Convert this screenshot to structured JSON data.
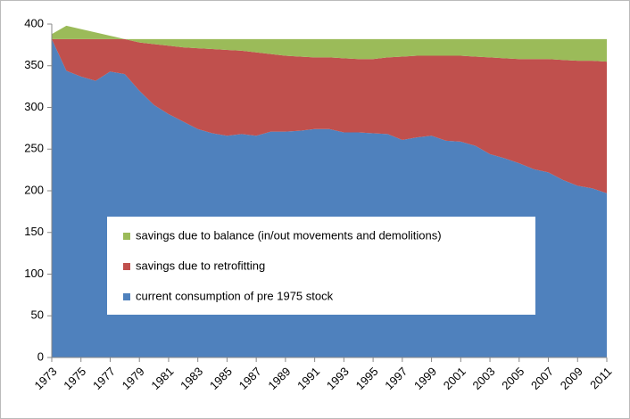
{
  "chart_data": {
    "type": "stacked-area",
    "x": [
      1973,
      1974,
      1975,
      1976,
      1977,
      1978,
      1979,
      1980,
      1981,
      1982,
      1983,
      1984,
      1985,
      1986,
      1987,
      1988,
      1989,
      1990,
      1991,
      1992,
      1993,
      1994,
      1995,
      1996,
      1997,
      1998,
      1999,
      2000,
      2001,
      2002,
      2003,
      2004,
      2005,
      2006,
      2007,
      2008,
      2009,
      2010,
      2011
    ],
    "series": [
      {
        "name": "current consumption of pre 1975 stock",
        "color": "#4f81bd",
        "values": [
          382,
          344,
          337,
          332,
          343,
          340,
          320,
          303,
          292,
          283,
          274,
          269,
          266,
          268,
          266,
          271,
          271,
          272,
          274,
          274,
          270,
          270,
          269,
          268,
          261,
          264,
          266,
          260,
          259,
          254,
          244,
          239,
          233,
          226,
          222,
          213,
          206,
          203,
          197
        ]
      },
      {
        "name": "savings due to retrofitting",
        "color": "#c0504d",
        "values": [
          0,
          38,
          45,
          50,
          39,
          42,
          58,
          73,
          82,
          89,
          97,
          101,
          103,
          100,
          100,
          93,
          91,
          89,
          86,
          86,
          89,
          88,
          89,
          92,
          100,
          98,
          96,
          102,
          103,
          107,
          116,
          120,
          125,
          132,
          136,
          144,
          150,
          153,
          158
        ]
      },
      {
        "name": "savings due to balance (in/out movements and demolitions)",
        "color": "#9bbb59",
        "values": [
          6,
          16,
          12,
          8,
          4,
          0,
          4,
          6,
          8,
          10,
          11,
          12,
          13,
          14,
          16,
          18,
          20,
          21,
          22,
          22,
          23,
          24,
          24,
          22,
          21,
          20,
          20,
          20,
          20,
          21,
          22,
          23,
          24,
          24,
          24,
          25,
          26,
          26,
          27
        ]
      }
    ],
    "xlim": [
      1973,
      2011
    ],
    "xticks": [
      1973,
      1975,
      1977,
      1979,
      1981,
      1983,
      1985,
      1987,
      1989,
      1991,
      1993,
      1995,
      1997,
      1999,
      2001,
      2003,
      2005,
      2007,
      2009,
      2011
    ],
    "ylim": [
      0,
      400
    ],
    "yticks": [
      0,
      50,
      100,
      150,
      200,
      250,
      300,
      350,
      400
    ],
    "grid": false
  }
}
